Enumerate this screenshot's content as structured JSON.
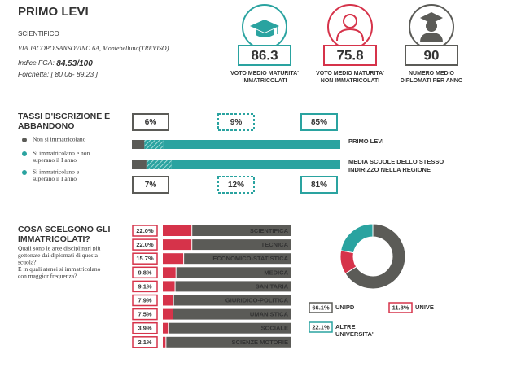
{
  "header": {
    "title": "PRIMO LEVI",
    "school_type": "SCIENTIFICO",
    "address": "VIA JACOPO SANSOVINO 6A, Montebelluna(TREVISO)",
    "fga_label": "Indice FGA:",
    "fga_value": "84.53/100",
    "range_label": "Forchetta:",
    "range_value": "[ 80.06- 89.23 ]"
  },
  "stats": [
    {
      "value": 86.3,
      "label": [
        "VOTO MEDIO MATURITA'",
        "IMMATRICOLATI"
      ],
      "color": "#2aa3a0"
    },
    {
      "value": 75.8,
      "label": [
        "VOTO MEDIO MATURITA'",
        "NON IMMATRICOLATI"
      ],
      "color": "#d6334a"
    },
    {
      "value": 90,
      "label": [
        "NUMERO MEDIO",
        "DIPLOMATI PER ANNO"
      ],
      "color": "#5b5b57"
    }
  ],
  "enrollment": {
    "title": [
      "TASSI D'ISCRIZIONE E",
      "ABBANDONO"
    ],
    "legend": [
      [
        "Non si immatricolano"
      ],
      [
        "Si immatricolano e non",
        "superano il I anno"
      ],
      [
        "Si immatricolano e",
        "superano il I anno"
      ]
    ],
    "colors": [
      "#5b5b57",
      "#2aa3a0",
      "#2aa3a0"
    ],
    "rows": [
      {
        "name": [
          "PRIMO LEVI"
        ],
        "values": [
          6,
          9,
          85
        ],
        "value_labels": [
          "6%",
          "9%",
          "85%"
        ]
      },
      {
        "name": [
          "MEDIA SCUOLE DELLO STESSO",
          "INDIRIZZO NELLA REGIONE"
        ],
        "values": [
          7,
          12,
          81
        ],
        "value_labels": [
          "7%",
          "12%",
          "81%"
        ]
      }
    ]
  },
  "choices": {
    "title": [
      "COSA SCELGONO GLI",
      "IMMATRICOLATI?"
    ],
    "question": [
      "Quali sono le aree disciplinari più",
      "gettonate dai diplomati di questa",
      "scuola?",
      "E in quali atenei si immatricolano",
      "con maggior frequenza?"
    ],
    "categories": [
      "SCIENTIFICA",
      "TECNICA",
      "ECONOMICO-STATISTICA",
      "MEDICA",
      "SANITARIA",
      "GIURIDICO-POLITICA",
      "UMANISTICA",
      "SOCIALE",
      "SCIENZE MOTORIE"
    ],
    "values": [
      22.0,
      22.0,
      15.7,
      9.8,
      9.1,
      7.9,
      7.5,
      3.9,
      2.1
    ],
    "value_labels": [
      "22.0%",
      "22.0%",
      "15.7%",
      "9.8%",
      "9.1%",
      "7.9%",
      "7.5%",
      "3.9%",
      "2.1%"
    ],
    "color": "#d6334a"
  },
  "universities": {
    "names": [
      [
        "UNIPD"
      ],
      [
        "UNIVE"
      ],
      [
        "ALTRE",
        "UNIVERSITA'"
      ]
    ],
    "values": [
      66.1,
      11.8,
      22.1
    ],
    "value_labels": [
      "66.1%",
      "11.8%",
      "22.1%"
    ],
    "colors": [
      "#5b5b57",
      "#d6334a",
      "#2aa3a0"
    ]
  }
}
